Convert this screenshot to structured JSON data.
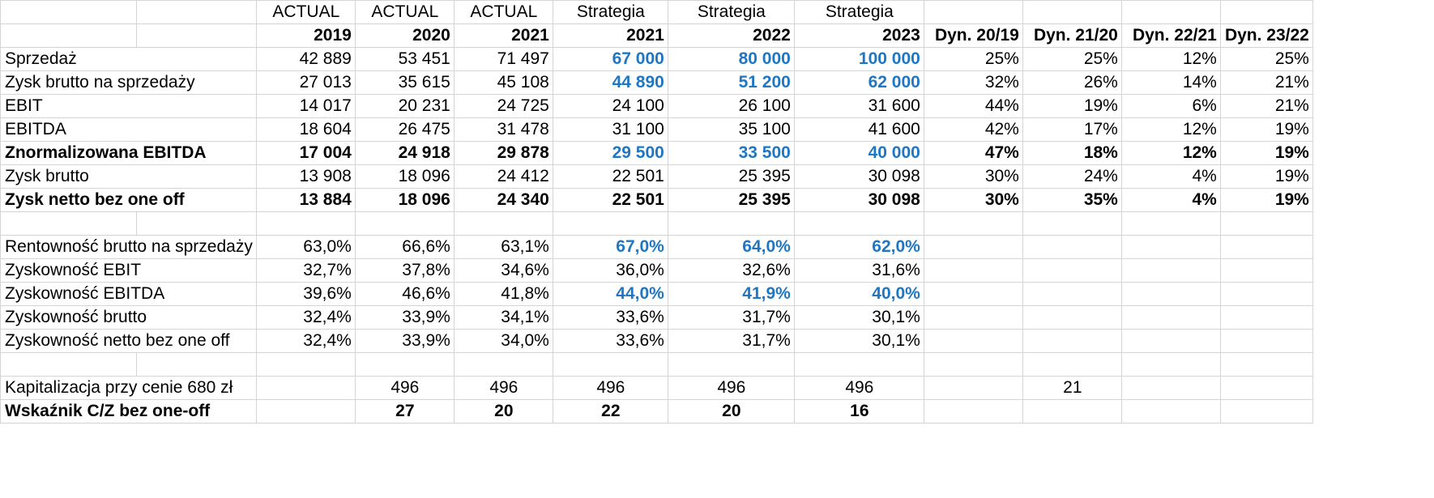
{
  "header": {
    "type_row": [
      "",
      "",
      "ACTUAL",
      "ACTUAL",
      "ACTUAL",
      "Strategia",
      "Strategia",
      "Strategia",
      "",
      "",
      "",
      ""
    ],
    "year_row": [
      "",
      "",
      "2019",
      "2020",
      "2021",
      "2021",
      "2022",
      "2023",
      "Dyn. 20/19",
      "Dyn. 21/20",
      "Dyn. 22/21",
      "Dyn. 23/22"
    ]
  },
  "section1": [
    {
      "label": "Sprzedaż",
      "values": [
        "42 889",
        "53 451",
        "71 497",
        "67 000",
        "80 000",
        "100 000",
        "25%",
        "25%",
        "12%",
        "25%"
      ],
      "bold": false
    },
    {
      "label": "Zysk brutto na sprzedaży",
      "values": [
        "27 013",
        "35 615",
        "45 108",
        "44 890",
        "51 200",
        "62 000",
        "32%",
        "26%",
        "14%",
        "21%"
      ],
      "bold": false
    },
    {
      "label": "EBIT",
      "values": [
        "14 017",
        "20 231",
        "24 725",
        "24 100",
        "26 100",
        "31 600",
        "44%",
        "19%",
        "6%",
        "21%"
      ],
      "bold": false
    },
    {
      "label": "EBITDA",
      "values": [
        "18 604",
        "26 475",
        "31 478",
        "31 100",
        "35 100",
        "41 600",
        "42%",
        "17%",
        "12%",
        "19%"
      ],
      "bold": false
    },
    {
      "label": "Znormalizowana EBITDA",
      "values": [
        "17 004",
        "24 918",
        "29 878",
        "29 500",
        "33 500",
        "40 000",
        "47%",
        "18%",
        "12%",
        "19%"
      ],
      "bold": true
    },
    {
      "label": "Zysk brutto",
      "values": [
        "13 908",
        "18 096",
        "24 412",
        "22 501",
        "25 395",
        "30 098",
        "30%",
        "24%",
        "4%",
        "19%"
      ],
      "bold": false
    },
    {
      "label": "Zysk netto bez one off",
      "values": [
        "13 884",
        "18 096",
        "24 340",
        "22 501",
        "25 395",
        "30 098",
        "30%",
        "35%",
        "4%",
        "19%"
      ],
      "bold": true
    }
  ],
  "section2": [
    {
      "label": "Rentowność brutto na sprzedaży",
      "values": [
        "63,0%",
        "66,6%",
        "63,1%",
        "67,0%",
        "64,0%",
        "62,0%"
      ]
    },
    {
      "label": "Zyskowność EBIT",
      "values": [
        "32,7%",
        "37,8%",
        "34,6%",
        "36,0%",
        "32,6%",
        "31,6%"
      ]
    },
    {
      "label": "Zyskowność EBITDA",
      "values": [
        "39,6%",
        "46,6%",
        "41,8%",
        "44,0%",
        "41,9%",
        "40,0%"
      ]
    },
    {
      "label": "Zyskowność brutto",
      "values": [
        "32,4%",
        "33,9%",
        "34,1%",
        "33,6%",
        "31,7%",
        "30,1%"
      ]
    },
    {
      "label": "Zyskowność netto bez one off",
      "values": [
        "32,4%",
        "33,9%",
        "34,0%",
        "33,6%",
        "31,7%",
        "30,1%"
      ]
    }
  ],
  "section3": [
    {
      "label": "Kapitalizacja przy cenie 680 zł",
      "values": [
        "",
        "496",
        "496",
        "496",
        "496",
        "496",
        "",
        "21",
        "",
        ""
      ]
    },
    {
      "label": "Wskaźnik C/Z bez one-off",
      "values": [
        "",
        "27",
        "20",
        "22",
        "20",
        "16",
        "",
        "",
        "",
        ""
      ]
    }
  ],
  "colors": {
    "strategy_highlight": "#1f77c4",
    "grid": "#d4d4d4"
  }
}
